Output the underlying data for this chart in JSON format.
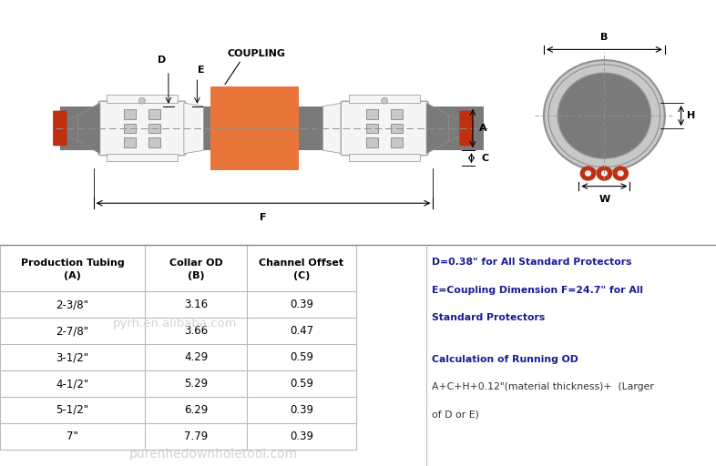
{
  "bg_color": "#ffffff",
  "coupling_label": "COUPLING",
  "table_headers_row1": [
    "Production Tubing",
    "Collar OD",
    "Channel Offset"
  ],
  "table_headers_row2": [
    "(A)",
    "(B)",
    "(C)"
  ],
  "table_rows": [
    [
      "2-3/8\"",
      "3.16",
      "0.39"
    ],
    [
      "2-7/8\"",
      "3.66",
      "0.47"
    ],
    [
      "3-1/2\"",
      "4.29",
      "0.59"
    ],
    [
      "4-1/2\"",
      "5.29",
      "0.59"
    ],
    [
      "5-1/2\"",
      "6.29",
      "0.39"
    ],
    [
      "7\"",
      "7.79",
      "0.39"
    ]
  ],
  "notes": [
    {
      "text": "D=0.38\" for All Standard Protectors",
      "bold": true
    },
    {
      "text": "E=Coupling Dimension F=24.7\" for All",
      "bold": true
    },
    {
      "text": "Standard Protectors",
      "bold": true
    },
    {
      "text": "",
      "bold": false
    },
    {
      "text": "Calculation of Running OD",
      "bold": true
    },
    {
      "text": "A+C+H+0.12\"(material thickness)+  (Larger",
      "bold": false
    },
    {
      "text": "of D or E)",
      "bold": false
    }
  ],
  "watermark1": "pyrh.en.alibaba.com",
  "watermark2": "purenhedownholetool.com",
  "gray_dark": "#606060",
  "gray_med": "#909090",
  "gray_light": "#C8C8C8",
  "gray_body": "#7A7A7A",
  "orange_color": "#E8763A",
  "red_color": "#C03010",
  "white_color": "#F5F5F5",
  "table_line_color": "#BBBBBB",
  "note_text_color": "#1a1a99",
  "note_plain_color": "#333333"
}
